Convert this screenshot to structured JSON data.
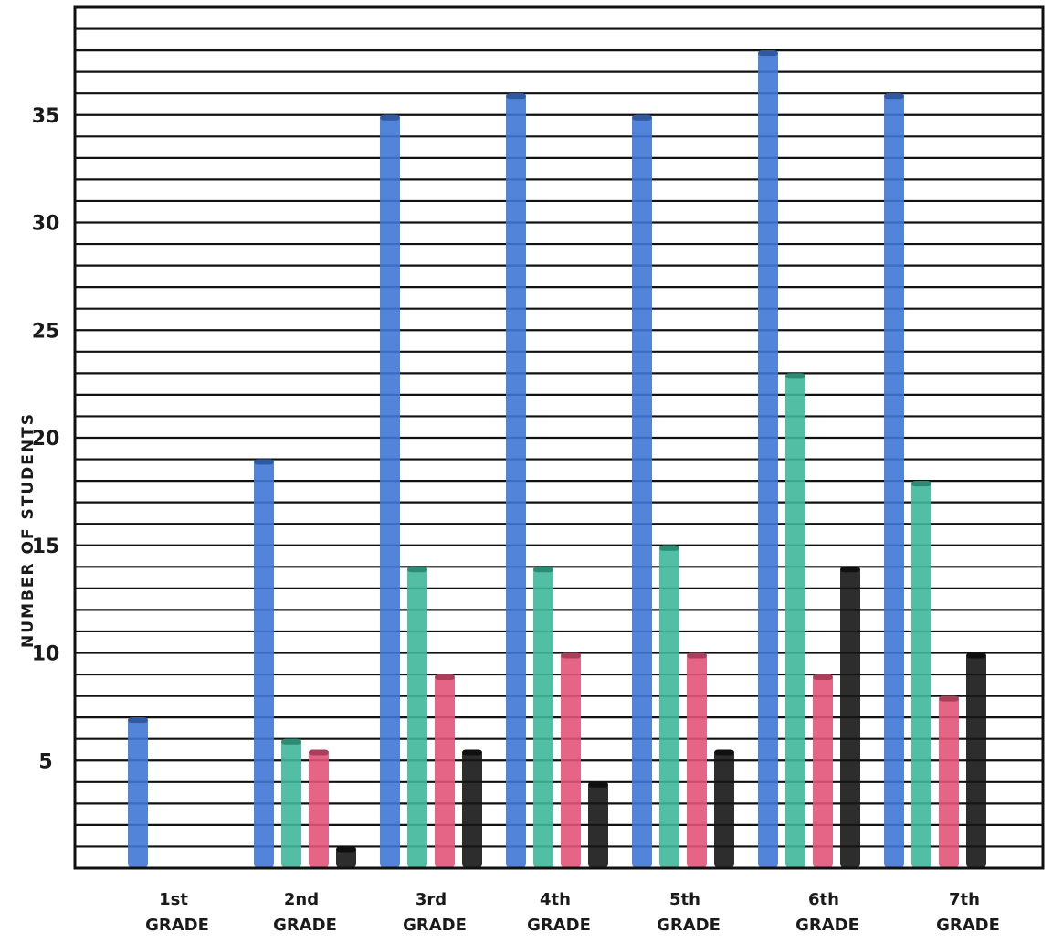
{
  "chart_data": {
    "type": "bar",
    "title": "",
    "xlabel": "",
    "ylabel": "NUMBER OF STUDENTS",
    "ylim": [
      0,
      40
    ],
    "yticks": [
      5,
      10,
      15,
      20,
      25,
      30,
      35
    ],
    "grid": true,
    "categories": [
      {
        "line1": "1st",
        "line2": "GRADE"
      },
      {
        "line1": "2nd",
        "line2": "GRADE"
      },
      {
        "line1": "3rd",
        "line2": "GRADE"
      },
      {
        "line1": "4th",
        "line2": "GRADE"
      },
      {
        "line1": "5th",
        "line2": "GRADE"
      },
      {
        "line1": "6th",
        "line2": "GRADE"
      },
      {
        "line1": "7th",
        "line2": "GRADE"
      }
    ],
    "series": [
      {
        "color": "#3f78d6",
        "values": [
          7,
          19,
          35,
          36,
          35,
          38,
          36
        ]
      },
      {
        "color": "#3fb89a",
        "values": [
          null,
          6,
          14,
          14,
          15,
          23,
          18
        ]
      },
      {
        "color": "#e2547a",
        "values": [
          null,
          5.5,
          9,
          10,
          10,
          9,
          8
        ]
      },
      {
        "color": "#161616",
        "values": [
          null,
          1,
          5.5,
          4,
          5.5,
          14,
          10
        ]
      }
    ]
  }
}
